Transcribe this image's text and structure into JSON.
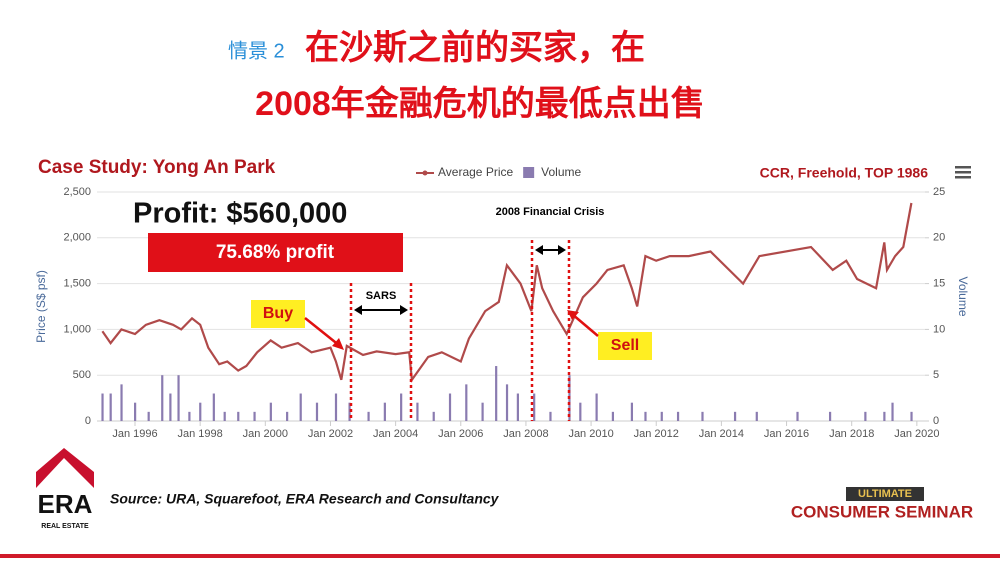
{
  "slide": {
    "scenario": "情景 2",
    "title_line1": "在沙斯之前的买家，在",
    "title_line2": "2008年金融危机的最低点出售",
    "case_study": "Case Study: Yong An Park",
    "property_info": "CCR, Freehold, TOP 1986",
    "profit": "Profit: $560,000",
    "profit_pct": "75.68% profit",
    "buy": "Buy",
    "sell": "Sell",
    "sars": "SARS",
    "crisis": "2008 Financial Crisis",
    "source": "Source: URA, Squarefoot, ERA Research and Consultancy",
    "logo_era": "ERA",
    "logo_real_estate": "REAL ESTATE",
    "seminar_top": "ULTIMATE",
    "seminar_bottom": "CONSUMER SEMINAR"
  },
  "chart_data": {
    "type": "line",
    "ylabel": "Price (S$ psf)",
    "y2label": "Volume",
    "xlim": [
      "1994-11",
      "2020-04"
    ],
    "xticks": [
      {
        "value": "1996-01",
        "label": "Jan 1996"
      },
      {
        "value": "1998-01",
        "label": "Jan 1998"
      },
      {
        "value": "2000-01",
        "label": "Jan 2000"
      },
      {
        "value": "2002-01",
        "label": "Jan 2002"
      },
      {
        "value": "2004-01",
        "label": "Jan 2004"
      },
      {
        "value": "2006-01",
        "label": "Jan 2006"
      },
      {
        "value": "2008-01",
        "label": "Jan 2008"
      },
      {
        "value": "2010-01",
        "label": "Jan 2010"
      },
      {
        "value": "2012-01",
        "label": "Jan 2012"
      },
      {
        "value": "2014-01",
        "label": "Jan 2014"
      },
      {
        "value": "2016-01",
        "label": "Jan 2016"
      },
      {
        "value": "2018-01",
        "label": "Jan 2018"
      },
      {
        "value": "2020-01",
        "label": "Jan 2020"
      }
    ],
    "ylim": [
      0,
      2500
    ],
    "yticks": [
      0,
      500,
      {
        "value": 1000,
        "label": "1,000"
      },
      {
        "value": 1500,
        "label": "1,500"
      },
      {
        "value": 2000,
        "label": "2,000"
      },
      {
        "value": 2500,
        "label": "2,500"
      }
    ],
    "y2lim": [
      0,
      25
    ],
    "y2ticks": [
      0,
      5,
      10,
      15,
      20,
      25
    ],
    "grid": true,
    "legend": "top",
    "series": [
      {
        "name": "Average Price",
        "color": "#b04a4a",
        "type": "line",
        "x": [
          "1995-01",
          "1995-04",
          "1995-08",
          "1996-01",
          "1996-05",
          "1996-10",
          "1997-03",
          "1997-06",
          "1997-10",
          "1998-01",
          "1998-04",
          "1998-08",
          "1998-11",
          "1999-03",
          "1999-06",
          "1999-10",
          "2000-03",
          "2000-07",
          "2001-01",
          "2001-06",
          "2002-01",
          "2002-03",
          "2002-05",
          "2002-07",
          "2003-01",
          "2003-06",
          "2004-01",
          "2004-06",
          "2004-07",
          "2005-01",
          "2005-06",
          "2006-01",
          "2006-04",
          "2006-10",
          "2007-03",
          "2007-06",
          "2007-11",
          "2008-03",
          "2008-05",
          "2008-07",
          "2008-11",
          "2009-04",
          "2009-07",
          "2009-10",
          "2010-03",
          "2010-07",
          "2011-01",
          "2011-04",
          "2011-06",
          "2011-09",
          "2012-01",
          "2012-06",
          "2013-01",
          "2013-09",
          "2014-09",
          "2015-03",
          "2016-10",
          "2017-06",
          "2017-11",
          "2018-03",
          "2018-10",
          "2019-01",
          "2019-02",
          "2019-05",
          "2019-08",
          "2019-11"
        ],
        "values": [
          980,
          850,
          1000,
          950,
          1050,
          1100,
          1050,
          1000,
          1120,
          1050,
          800,
          620,
          650,
          550,
          600,
          750,
          880,
          800,
          850,
          750,
          800,
          650,
          450,
          820,
          720,
          760,
          730,
          750,
          450,
          700,
          750,
          650,
          900,
          1200,
          1300,
          1700,
          1500,
          1200,
          1700,
          1450,
          1200,
          950,
          1150,
          1350,
          1500,
          1650,
          1700,
          1450,
          1250,
          1800,
          1750,
          1800,
          1800,
          1850,
          1500,
          1800,
          1900,
          1650,
          1750,
          1550,
          1450,
          1950,
          1650,
          1800,
          1900,
          2380
        ]
      },
      {
        "name": "Volume",
        "color": "#8a7bb0",
        "type": "bar",
        "axis": "y2",
        "x": [
          "1995-01",
          "1995-04",
          "1995-08",
          "1996-01",
          "1996-06",
          "1996-11",
          "1997-02",
          "1997-05",
          "1997-09",
          "1998-01",
          "1998-06",
          "1998-10",
          "1999-03",
          "1999-09",
          "2000-03",
          "2000-09",
          "2001-02",
          "2001-08",
          "2002-03",
          "2002-08",
          "2003-03",
          "2003-09",
          "2004-03",
          "2004-09",
          "2005-03",
          "2005-09",
          "2006-03",
          "2006-09",
          "2007-02",
          "2007-06",
          "2007-10",
          "2008-04",
          "2008-10",
          "2009-05",
          "2009-09",
          "2010-03",
          "2010-09",
          "2011-04",
          "2011-09",
          "2012-03",
          "2012-09",
          "2013-06",
          "2014-06",
          "2015-02",
          "2016-05",
          "2017-05",
          "2018-06",
          "2019-01",
          "2019-04",
          "2019-11"
        ],
        "values": [
          3,
          3,
          4,
          2,
          1,
          5,
          3,
          5,
          1,
          2,
          3,
          1,
          1,
          1,
          2,
          1,
          3,
          2,
          3,
          2,
          1,
          2,
          3,
          2,
          1,
          3,
          4,
          2,
          6,
          4,
          3,
          3,
          1,
          5,
          2,
          3,
          1,
          2,
          1,
          1,
          1,
          1,
          1,
          1,
          1,
          1,
          1,
          1,
          2,
          1
        ]
      }
    ]
  }
}
